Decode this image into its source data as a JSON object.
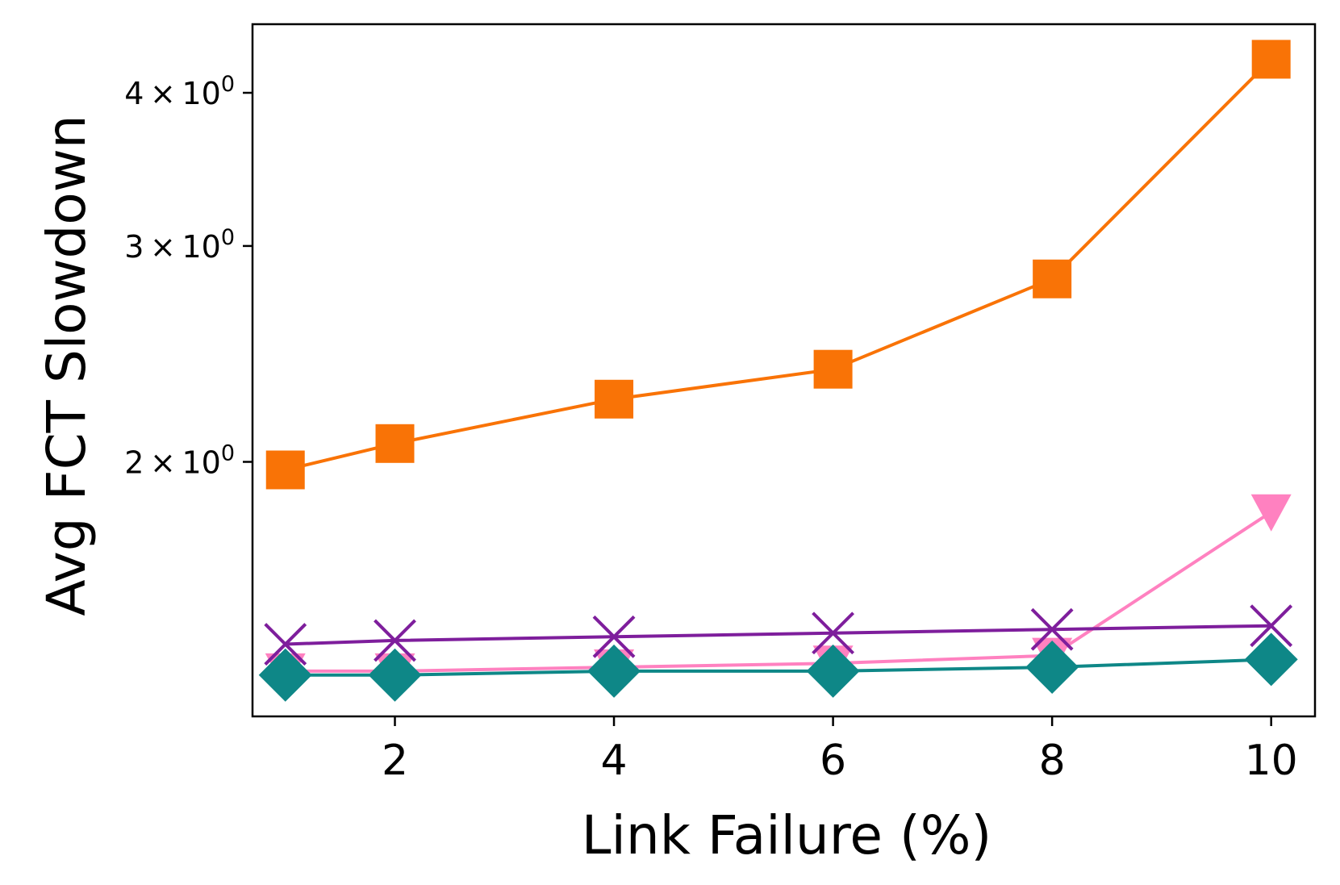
{
  "chart_data": {
    "type": "line",
    "xlabel": "Link Failure (%)",
    "ylabel": "Avg FCT Slowdown",
    "yscale": "log",
    "xlim": [
      0.7,
      10.4
    ],
    "ylim": [
      1.24,
      4.55
    ],
    "xticks": [
      2,
      4,
      6,
      8,
      10
    ],
    "xtick_labels": [
      "2",
      "4",
      "6",
      "8",
      "10"
    ],
    "yticks": [
      2,
      3,
      4
    ],
    "ytick_labels": [
      {
        "mantissa": "2",
        "times": "×",
        "base": "10",
        "exp": "0"
      },
      {
        "mantissa": "3",
        "times": "×",
        "base": "10",
        "exp": "0"
      },
      {
        "mantissa": "4",
        "times": "×",
        "base": "10",
        "exp": "0"
      }
    ],
    "legend": "none",
    "grid": false,
    "x": [
      1,
      2,
      4,
      6,
      8,
      10
    ],
    "series": [
      {
        "color": "#f97306",
        "marker": "square",
        "values": [
          1.97,
          2.07,
          2.25,
          2.38,
          2.82,
          4.26
        ]
      },
      {
        "color": "#ff81c0",
        "marker": "triangle-down",
        "values": [
          1.35,
          1.35,
          1.36,
          1.37,
          1.39,
          1.82
        ]
      },
      {
        "color": "#7e1e9c",
        "marker": "x",
        "values": [
          1.42,
          1.43,
          1.44,
          1.45,
          1.46,
          1.47
        ]
      },
      {
        "color": "#0e8787",
        "marker": "diamond",
        "values": [
          1.34,
          1.34,
          1.35,
          1.35,
          1.36,
          1.38
        ]
      }
    ]
  }
}
